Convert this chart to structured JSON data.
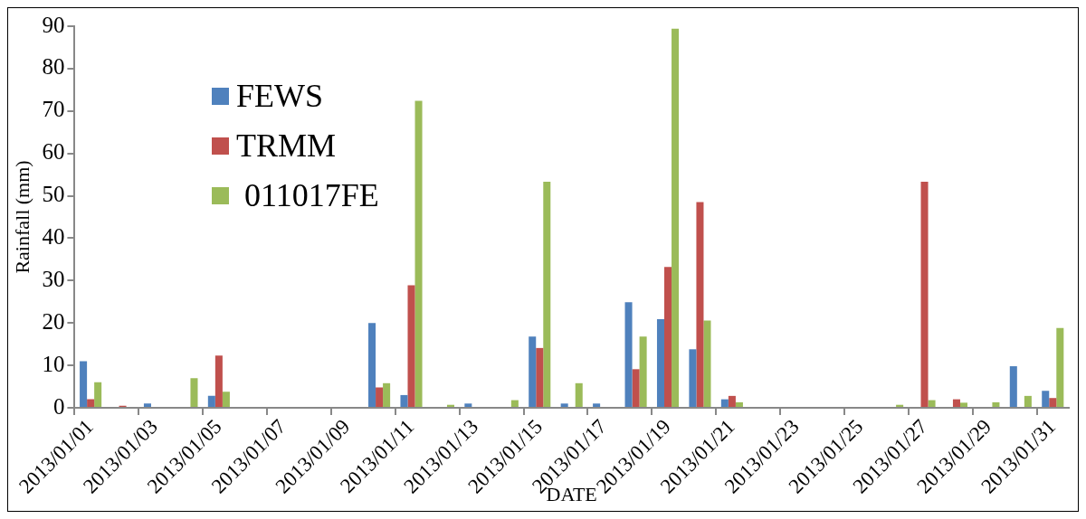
{
  "chart_data": {
    "type": "bar",
    "xlabel": "DATE",
    "ylabel": "Rainfall (mm)",
    "categories": [
      "2013/01/01",
      null,
      "2013/01/03",
      null,
      "2013/01/05",
      null,
      "2013/01/07",
      null,
      "2013/01/09",
      null,
      "2013/01/11",
      null,
      "2013/01/13",
      null,
      "2013/01/15",
      null,
      "2013/01/17",
      null,
      "2013/01/19",
      null,
      "2013/01/21",
      null,
      "2013/01/23",
      null,
      "2013/01/25",
      null,
      "2013/01/27",
      null,
      "2013/01/29",
      null,
      "2013/01/31"
    ],
    "series": [
      {
        "name": "FEWS",
        "color": "#4f81bd",
        "values": [
          11,
          0,
          1,
          0,
          2.8,
          0,
          0,
          0,
          0,
          20,
          3,
          0,
          1,
          0,
          16.8,
          1,
          1,
          24.9,
          20.9,
          13.8,
          2,
          0,
          0,
          0,
          0,
          0,
          0,
          0,
          0,
          9.8,
          4
        ]
      },
      {
        "name": "TRMM",
        "color": "#c0504d",
        "values": [
          2,
          0.5,
          0,
          0,
          12.3,
          0,
          0,
          0,
          0,
          4.8,
          28.9,
          0,
          0,
          0,
          14.1,
          0,
          0,
          9.1,
          33.2,
          48.5,
          2.8,
          0,
          0,
          0,
          0,
          0,
          53.3,
          2,
          0,
          0,
          2.3
        ]
      },
      {
        "name": " 011017FE",
        "color": "#9bbb59",
        "values": [
          6,
          0,
          0,
          7,
          3.8,
          0,
          0,
          0,
          0,
          5.8,
          72.4,
          0.7,
          0,
          1.8,
          53.3,
          5.8,
          0,
          16.8,
          89.4,
          20.6,
          1.3,
          0,
          0,
          null,
          0,
          0.7,
          1.8,
          1.2,
          1.3,
          2.8,
          18.8
        ]
      }
    ],
    "ylim": [
      0,
      90
    ],
    "yticks": [
      0,
      10,
      20,
      30,
      40,
      50,
      60,
      70,
      80,
      90
    ],
    "grid": false,
    "legend": "top left"
  }
}
